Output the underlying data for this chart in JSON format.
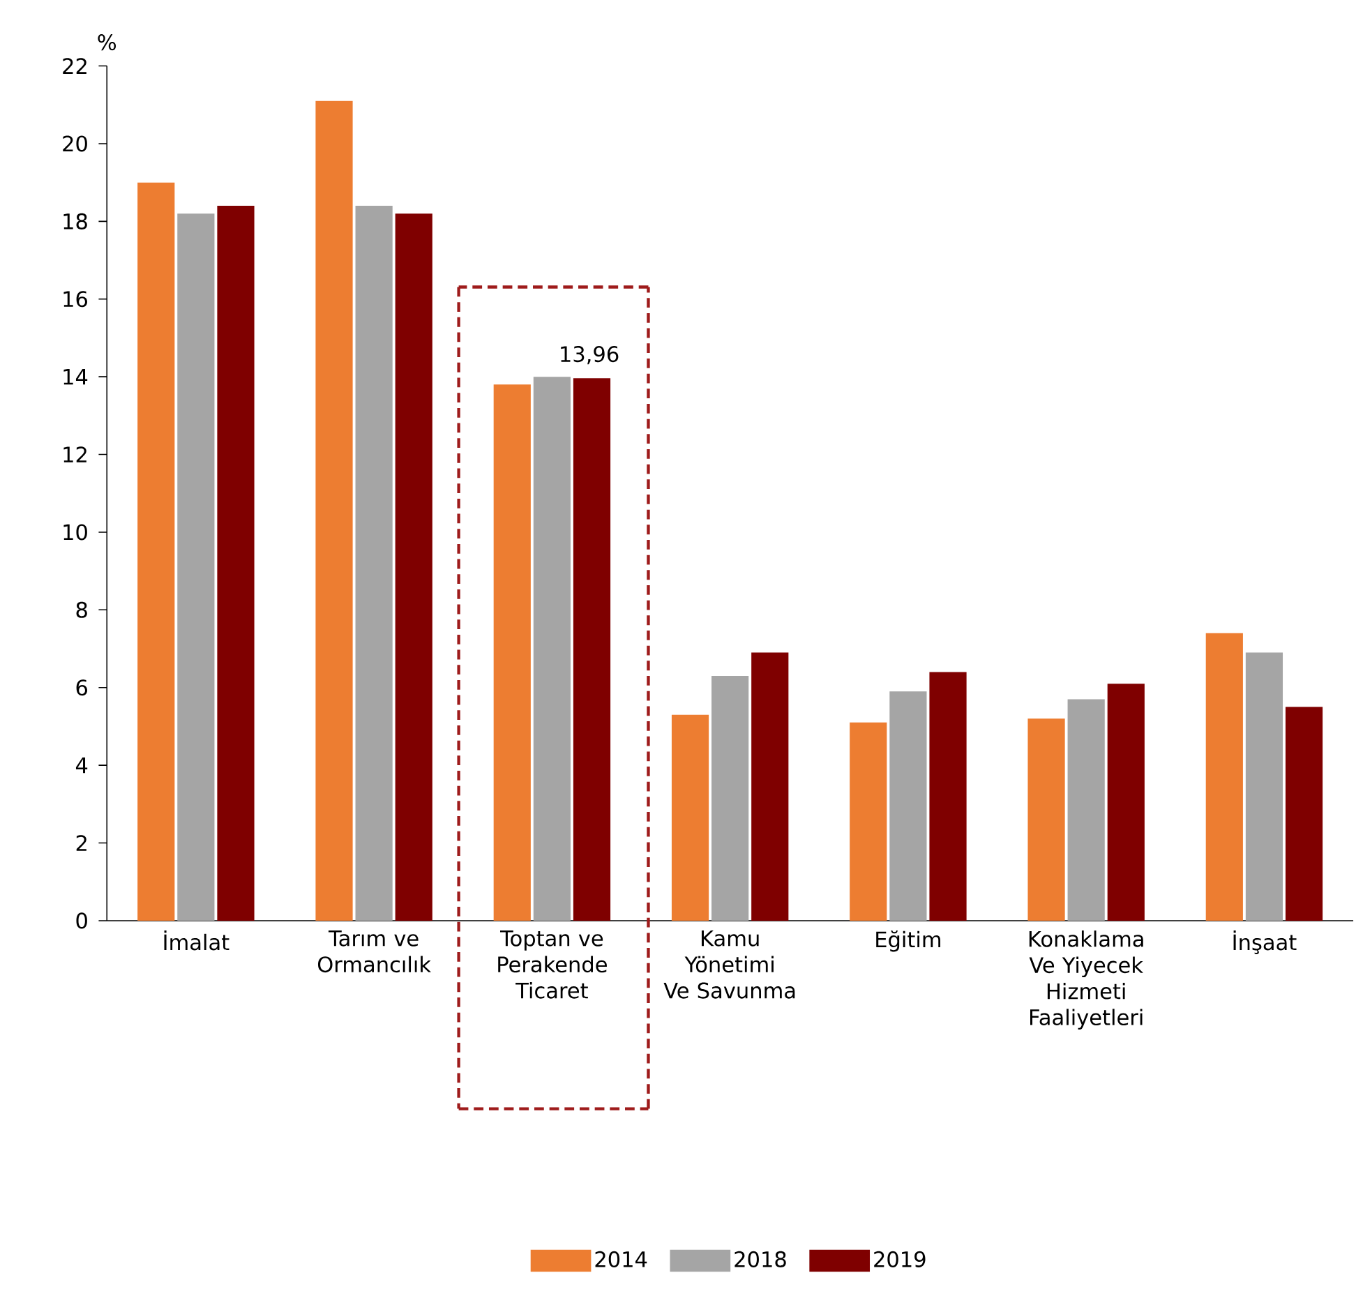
{
  "chart_data": {
    "type": "bar",
    "ylabel": "%",
    "categories": [
      "İmalat",
      "Tarım ve Ormancılık",
      "Toptan ve Perakende Ticaret",
      "Kamu Yönetimi Ve Savunma",
      "Eğitim",
      "Konaklama Ve Yiyecek Hizmeti Faaliyetleri",
      "İnşaat"
    ],
    "series": [
      {
        "name": "2014",
        "color": "#ed7d31",
        "values": [
          19.0,
          21.1,
          13.8,
          5.3,
          5.1,
          5.2,
          7.4
        ]
      },
      {
        "name": "2018",
        "color": "#a5a5a5",
        "values": [
          18.2,
          18.4,
          14.0,
          6.3,
          5.9,
          5.7,
          6.9
        ]
      },
      {
        "name": "2019",
        "color": "#7f0000",
        "values": [
          18.4,
          18.2,
          13.96,
          6.9,
          6.4,
          6.1,
          5.5
        ],
        "value_labels": [
          null,
          null,
          "13,96",
          null,
          null,
          null,
          null
        ]
      }
    ],
    "ylim": [
      0,
      22
    ],
    "yticks": [
      0,
      2,
      4,
      6,
      8,
      10,
      12,
      14,
      16,
      18,
      20,
      22
    ],
    "grid": false,
    "legend": "bottom"
  }
}
